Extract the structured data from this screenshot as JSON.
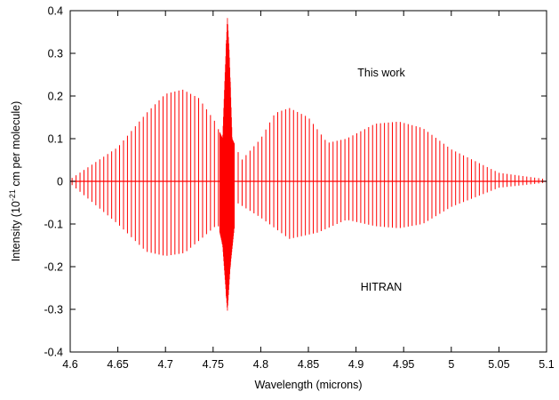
{
  "chart_data": {
    "type": "line",
    "title": "",
    "xlabel": "Wavelength (microns)",
    "ylabel": {
      "prefix": "Intensity (10",
      "superscript": "-21",
      "suffix": " cm per molecule)"
    },
    "xlim": [
      4.6,
      5.1
    ],
    "ylim": [
      -0.4,
      0.4
    ],
    "x_ticks": [
      "4.6",
      "4.65",
      "4.7",
      "4.75",
      "4.8",
      "4.85",
      "4.9",
      "4.95",
      "5",
      "5.05",
      "5.1"
    ],
    "y_ticks": [
      "-0.4",
      "-0.3",
      "-0.2",
      "-0.1",
      "0",
      "0.1",
      "0.2",
      "0.3",
      "0.4"
    ],
    "grid": false,
    "series_color": "#ff0000",
    "annotations": [
      {
        "text": "This work",
        "x": 4.925,
        "y": 0.25
      },
      {
        "text": "HITRAN",
        "x": 4.925,
        "y": -0.25
      }
    ],
    "series": [
      {
        "sign": "positive",
        "envelope": [
          [
            4.6,
            0.005
          ],
          [
            4.65,
            0.08
          ],
          [
            4.68,
            0.16
          ],
          [
            4.7,
            0.205
          ],
          [
            4.718,
            0.215
          ],
          [
            4.735,
            0.195
          ],
          [
            4.752,
            0.14
          ],
          [
            4.76,
            0.1
          ],
          [
            4.7625,
            0.25
          ],
          [
            4.765,
            0.385
          ],
          [
            4.767,
            0.3
          ],
          [
            4.77,
            0.1
          ],
          [
            4.78,
            0.05
          ],
          [
            4.8,
            0.1
          ],
          [
            4.815,
            0.16
          ],
          [
            4.83,
            0.172
          ],
          [
            4.85,
            0.15
          ],
          [
            4.87,
            0.09
          ],
          [
            4.89,
            0.1
          ],
          [
            4.92,
            0.135
          ],
          [
            4.945,
            0.14
          ],
          [
            4.97,
            0.125
          ],
          [
            5.0,
            0.075
          ],
          [
            5.05,
            0.02
          ],
          [
            5.1,
            0.005
          ]
        ]
      },
      {
        "sign": "negative",
        "envelope": [
          [
            4.6,
            -0.005
          ],
          [
            4.65,
            -0.1
          ],
          [
            4.68,
            -0.165
          ],
          [
            4.7,
            -0.175
          ],
          [
            4.72,
            -0.168
          ],
          [
            4.74,
            -0.13
          ],
          [
            4.755,
            -0.1
          ],
          [
            4.76,
            -0.15
          ],
          [
            4.765,
            -0.305
          ],
          [
            4.768,
            -0.2
          ],
          [
            4.775,
            -0.05
          ],
          [
            4.8,
            -0.085
          ],
          [
            4.83,
            -0.135
          ],
          [
            4.86,
            -0.12
          ],
          [
            4.89,
            -0.09
          ],
          [
            4.92,
            -0.105
          ],
          [
            4.945,
            -0.11
          ],
          [
            4.97,
            -0.1
          ],
          [
            5.0,
            -0.06
          ],
          [
            5.05,
            -0.015
          ],
          [
            5.1,
            -0.003
          ]
        ]
      }
    ]
  }
}
